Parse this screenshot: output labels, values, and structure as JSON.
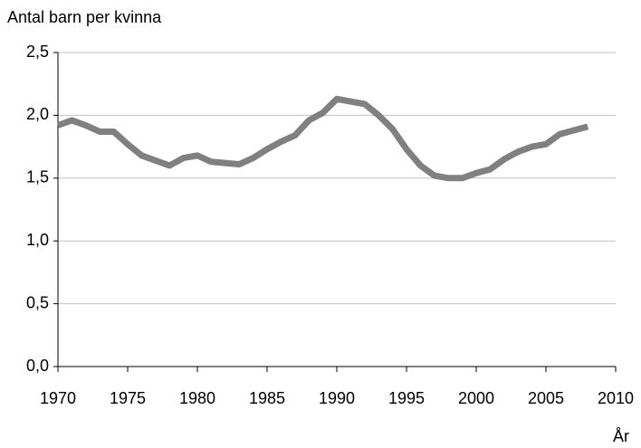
{
  "chart_data": {
    "type": "line",
    "y_label": "Antal barn per kvinna",
    "x_label": "År",
    "x": [
      1970,
      1971,
      1972,
      1973,
      1974,
      1975,
      1976,
      1977,
      1978,
      1979,
      1980,
      1981,
      1982,
      1983,
      1984,
      1985,
      1986,
      1987,
      1988,
      1989,
      1990,
      1991,
      1992,
      1993,
      1994,
      1995,
      1996,
      1997,
      1998,
      1999,
      2000,
      2001,
      2002,
      2003,
      2004,
      2005,
      2006,
      2007,
      2008
    ],
    "series": [
      {
        "color": "#808080",
        "values": [
          1.92,
          1.96,
          1.92,
          1.87,
          1.87,
          1.77,
          1.68,
          1.64,
          1.6,
          1.66,
          1.68,
          1.63,
          1.62,
          1.61,
          1.66,
          1.73,
          1.79,
          1.84,
          1.96,
          2.02,
          2.13,
          2.11,
          2.09,
          2.0,
          1.89,
          1.73,
          1.6,
          1.52,
          1.5,
          1.5,
          1.54,
          1.57,
          1.65,
          1.71,
          1.75,
          1.77,
          1.85,
          1.88,
          1.91
        ]
      }
    ],
    "xlim": [
      1970,
      2010
    ],
    "xticks": [
      1970,
      1975,
      1980,
      1985,
      1990,
      1995,
      2000,
      2005,
      2010
    ],
    "ylim": [
      0,
      2.5
    ],
    "yticks": [
      {
        "value": 0,
        "label": "0,0"
      },
      {
        "value": 0.5,
        "label": "0,5"
      },
      {
        "value": 1,
        "label": "1,0"
      },
      {
        "value": 1.5,
        "label": "1,5"
      },
      {
        "value": 2,
        "label": "2,0"
      },
      {
        "value": 2.5,
        "label": "2,5"
      }
    ],
    "grid": true
  }
}
